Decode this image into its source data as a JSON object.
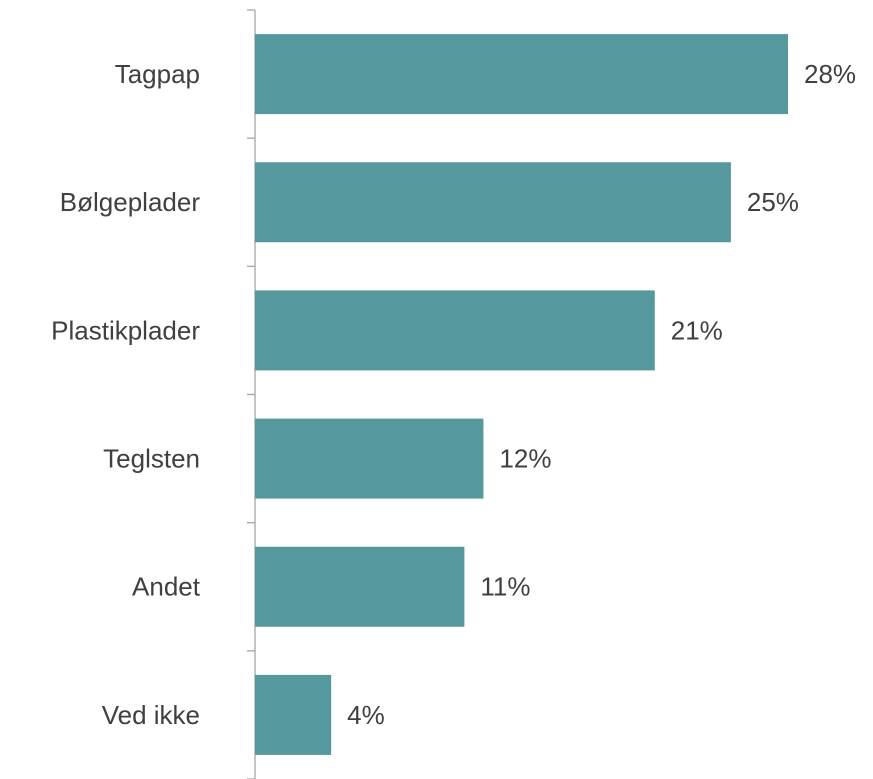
{
  "chart_data": {
    "type": "bar",
    "orientation": "horizontal",
    "categories": [
      "Tagpap",
      "Bølgeplader",
      "Plastikplader",
      "Teglsten",
      "Andet",
      "Ved ikke"
    ],
    "values": [
      28,
      25,
      21,
      12,
      11,
      4
    ],
    "value_labels": [
      "28%",
      "25%",
      "21%",
      "12%",
      "11%",
      "4%"
    ],
    "color": "#55989e"
  }
}
